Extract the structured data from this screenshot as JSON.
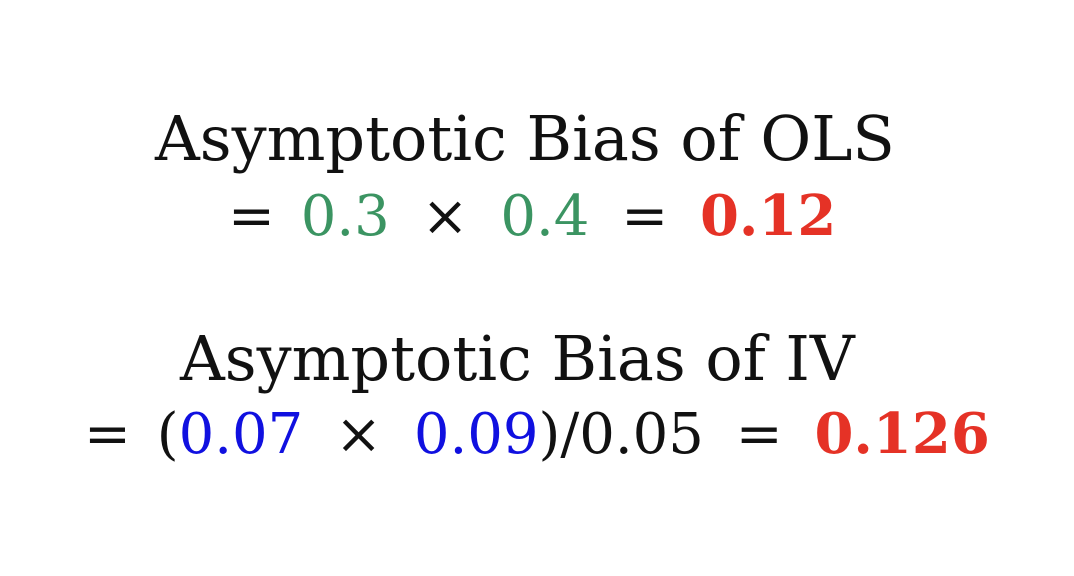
{
  "ols": {
    "title": "Asymptotic Bias of OLS",
    "equals_1": "=",
    "a": "0.3",
    "times": "×",
    "b": "0.4",
    "equals_2": "=",
    "result": "0.12"
  },
  "iv": {
    "title": "Asymptotic Bias of IV",
    "equals_1": "=",
    "open_paren": "(",
    "a": "0.07",
    "times": "×",
    "b": "0.09",
    "close_div": ")/0.05",
    "equals_2": "=",
    "result": "0.126"
  },
  "colors": {
    "ols_factor": "#3b9462",
    "iv_factor": "#1010e0",
    "result": "#e53226",
    "text": "#111111",
    "background": "#ffffff"
  }
}
